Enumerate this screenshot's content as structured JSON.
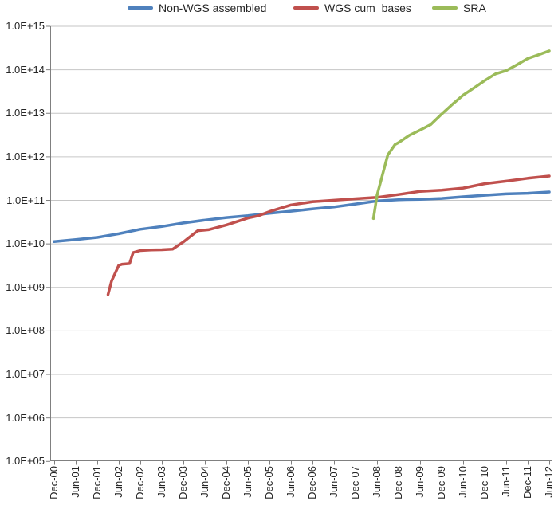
{
  "chart_data": {
    "type": "line",
    "title": "",
    "xlabel": "",
    "ylabel": "",
    "y_scale": "log",
    "ylim": [
      100000.0,
      1000000000000000.0
    ],
    "grid": "horizontal-decades",
    "y_tick_labels": [
      "1.0E+15",
      "1.0E+14",
      "1.0E+13",
      "1.0E+12",
      "1.0E+11",
      "1.0E+10",
      "1.0E+09",
      "1.0E+08",
      "1.0E+07",
      "1.0E+06",
      "1.0E+05"
    ],
    "x_tick_labels": [
      "Dec-00",
      "Jun-01",
      "Dec-01",
      "Jun-02",
      "Dec-02",
      "Jun-03",
      "Dec-03",
      "Jun-04",
      "Dec-04",
      "Jun-05",
      "Dec-05",
      "Jun-06",
      "Dec-06",
      "Jun-07",
      "Dec-07",
      "Jun-08",
      "Dec-08",
      "Jun-09",
      "Dec-09",
      "Jun-10",
      "Dec-10",
      "Jun-11",
      "Dec-11",
      "Jun-12"
    ],
    "x_unit": "months since Dec-2000 (tick labels every 6 months)",
    "legend": {
      "position": "top"
    },
    "colors": {
      "axis": "#808080",
      "gridline": "#c6c6c6",
      "text": "#262626",
      "background": "#ffffff"
    },
    "series": [
      {
        "name": "Non-WGS assembled",
        "color": "#4F81BD",
        "points": [
          [
            0,
            11200000000.0
          ],
          [
            6,
            12500000000.0
          ],
          [
            12,
            14000000000.0
          ],
          [
            18,
            17000000000.0
          ],
          [
            24,
            21500000000.0
          ],
          [
            30,
            25000000000.0
          ],
          [
            36,
            30000000000.0
          ],
          [
            42,
            35000000000.0
          ],
          [
            48,
            40000000000.0
          ],
          [
            54,
            44000000000.0
          ],
          [
            60,
            50000000000.0
          ],
          [
            66,
            56000000000.0
          ],
          [
            72,
            63000000000.0
          ],
          [
            78,
            70000000000.0
          ],
          [
            84,
            82000000000.0
          ],
          [
            90,
            96000000000.0
          ],
          [
            96,
            103000000000.0
          ],
          [
            102,
            105000000000.0
          ],
          [
            108,
            110000000000.0
          ],
          [
            114,
            120000000000.0
          ],
          [
            120,
            130000000000.0
          ],
          [
            126,
            140000000000.0
          ],
          [
            132,
            145000000000.0
          ],
          [
            138,
            155000000000.0
          ]
        ]
      },
      {
        "name": "WGS cum_bases",
        "color": "#C0504D",
        "points": [
          [
            15,
            680000000.0
          ],
          [
            16,
            1400000000.0
          ],
          [
            18,
            3200000000.0
          ],
          [
            19,
            3400000000.0
          ],
          [
            21,
            3500000000.0
          ],
          [
            22,
            6300000000.0
          ],
          [
            24,
            7000000000.0
          ],
          [
            27,
            7200000000.0
          ],
          [
            30,
            7300000000.0
          ],
          [
            33,
            7500000000.0
          ],
          [
            36,
            11000000000.0
          ],
          [
            40,
            20000000000.0
          ],
          [
            43,
            21000000000.0
          ],
          [
            48,
            27000000000.0
          ],
          [
            54,
            39000000000.0
          ],
          [
            57,
            44000000000.0
          ],
          [
            60,
            55000000000.0
          ],
          [
            66,
            78000000000.0
          ],
          [
            72,
            92000000000.0
          ],
          [
            78,
            100000000000.0
          ],
          [
            84,
            108000000000.0
          ],
          [
            90,
            116000000000.0
          ],
          [
            96,
            135000000000.0
          ],
          [
            102,
            160000000000.0
          ],
          [
            108,
            170000000000.0
          ],
          [
            114,
            190000000000.0
          ],
          [
            120,
            240000000000.0
          ],
          [
            126,
            275000000000.0
          ],
          [
            132,
            320000000000.0
          ],
          [
            138,
            360000000000.0
          ]
        ]
      },
      {
        "name": "SRA",
        "color": "#9BBB59",
        "points": [
          [
            89,
            38000000000.0
          ],
          [
            90,
            130000000000.0
          ],
          [
            93,
            1100000000000.0
          ],
          [
            95,
            1900000000000.0
          ],
          [
            96,
            2100000000000.0
          ],
          [
            99,
            3100000000000.0
          ],
          [
            102,
            4100000000000.0
          ],
          [
            105,
            5500000000000.0
          ],
          [
            108,
            9500000000000.0
          ],
          [
            111,
            16000000000000.0
          ],
          [
            114,
            26000000000000.0
          ],
          [
            117,
            38000000000000.0
          ],
          [
            120,
            56000000000000.0
          ],
          [
            123,
            80000000000000.0
          ],
          [
            126,
            95000000000000.0
          ],
          [
            129,
            130000000000000.0
          ],
          [
            132,
            180000000000000.0
          ],
          [
            135,
            220000000000000.0
          ],
          [
            138,
            270000000000000.0
          ]
        ]
      }
    ]
  }
}
